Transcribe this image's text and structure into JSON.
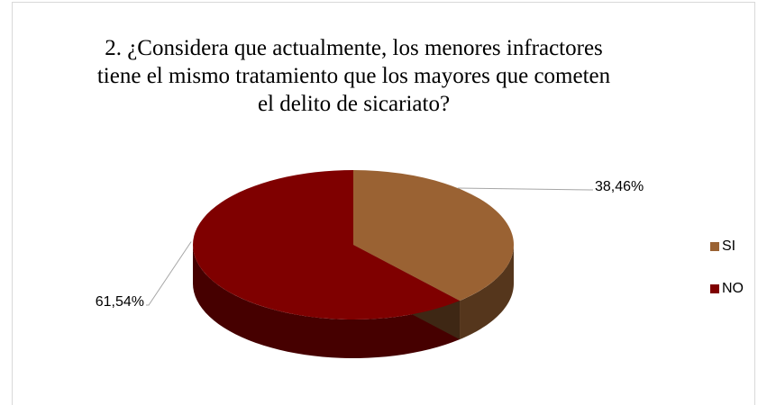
{
  "chart_data": {
    "type": "pie",
    "title": "2. ¿Considera que actualmente, los menores infractores tiene el mismo tratamiento que los mayores que cometen el delito de sicariato?",
    "categories": [
      "SI",
      "NO"
    ],
    "values": [
      38.46,
      61.54
    ],
    "value_labels": [
      "38,46%",
      "61,54%"
    ],
    "colors": [
      "#9a6233",
      "#7f0000"
    ],
    "legend": "right"
  }
}
